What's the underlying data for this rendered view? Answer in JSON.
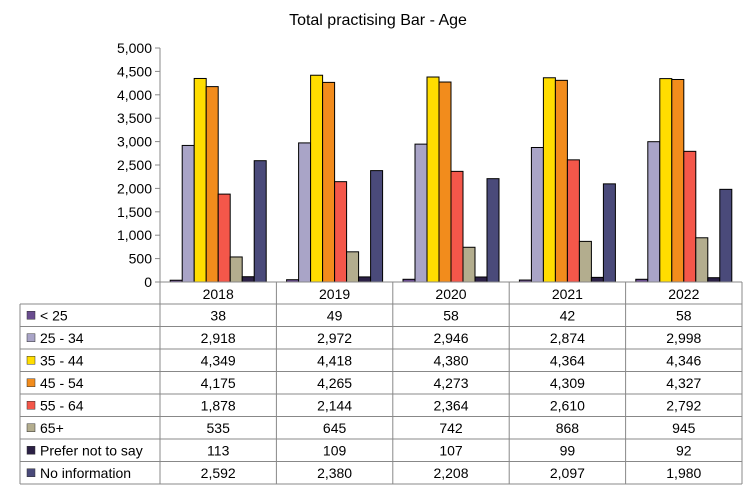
{
  "chart_data": {
    "type": "bar",
    "title": "Total practising Bar - Age",
    "categories": [
      "2018",
      "2019",
      "2020",
      "2021",
      "2022"
    ],
    "ylim": [
      0,
      5000
    ],
    "yticks": [
      "0",
      "500",
      "1,000",
      "1,500",
      "2,000",
      "2,500",
      "3,000",
      "3,500",
      "4,000",
      "4,500",
      "5,000"
    ],
    "grid": false,
    "legend": "data table",
    "series": [
      {
        "name": "< 25",
        "color": "#6a4d8f",
        "values": [
          38,
          49,
          58,
          42,
          58
        ],
        "labels": [
          "38",
          "49",
          "58",
          "42",
          "58"
        ]
      },
      {
        "name": "25 - 34",
        "color": "#a9a4c7",
        "values": [
          2918,
          2972,
          2946,
          2874,
          2998
        ],
        "labels": [
          "2,918",
          "2,972",
          "2,946",
          "2,874",
          "2,998"
        ]
      },
      {
        "name": "35 - 44",
        "color": "#ffdd00",
        "values": [
          4349,
          4418,
          4380,
          4364,
          4346
        ],
        "labels": [
          "4,349",
          "4,418",
          "4,380",
          "4,364",
          "4,346"
        ]
      },
      {
        "name": "45 - 54",
        "color": "#f28c1c",
        "values": [
          4175,
          4265,
          4273,
          4309,
          4327
        ],
        "labels": [
          "4,175",
          "4,265",
          "4,273",
          "4,309",
          "4,327"
        ]
      },
      {
        "name": "55 - 64",
        "color": "#f4574a",
        "values": [
          1878,
          2144,
          2364,
          2610,
          2792
        ],
        "labels": [
          "1,878",
          "2,144",
          "2,364",
          "2,610",
          "2,792"
        ]
      },
      {
        "name": "65+",
        "color": "#b3ad8e",
        "values": [
          535,
          645,
          742,
          868,
          945
        ],
        "labels": [
          "535",
          "645",
          "742",
          "868",
          "945"
        ]
      },
      {
        "name": "Prefer not to say",
        "color": "#2b2045",
        "values": [
          113,
          109,
          107,
          99,
          92
        ],
        "labels": [
          "113",
          "109",
          "107",
          "99",
          "92"
        ]
      },
      {
        "name": "No information",
        "color": "#4a4a7a",
        "values": [
          2592,
          2380,
          2208,
          2097,
          1980
        ],
        "labels": [
          "2,592",
          "2,380",
          "2,208",
          "2,097",
          "1,980"
        ]
      }
    ]
  }
}
